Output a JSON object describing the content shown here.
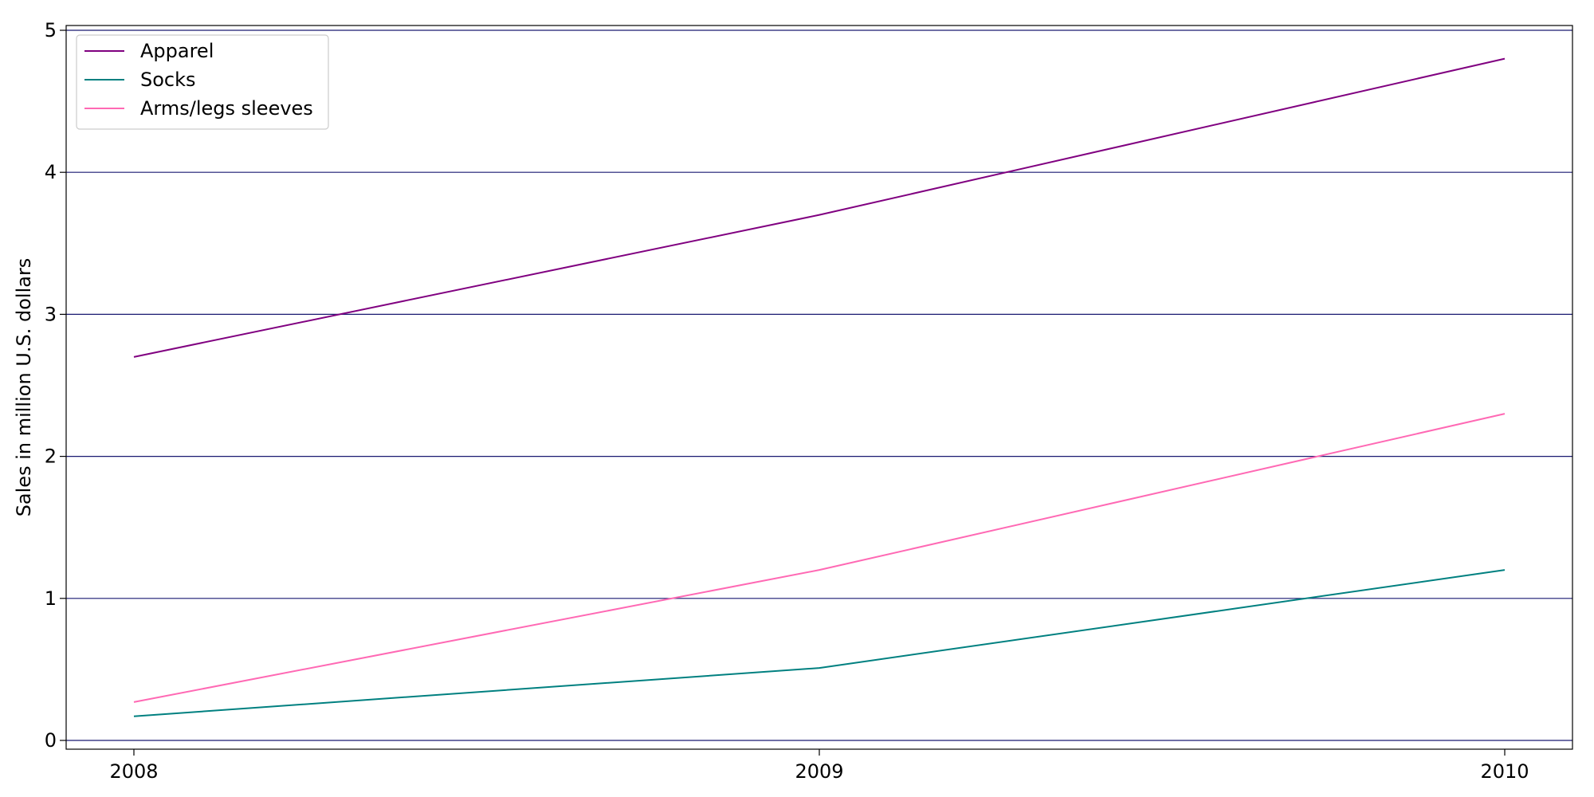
{
  "chart_data": {
    "type": "line",
    "title": "",
    "xlabel": "",
    "ylabel": "Sales in million U.S. dollars",
    "x": [
      "2008",
      "2009",
      "2010"
    ],
    "xticks": [
      "2008",
      "2009",
      "2010"
    ],
    "yticks": [
      "0",
      "1",
      "2",
      "3",
      "4",
      "5"
    ],
    "ylim": [
      0,
      5
    ],
    "grid": "horizontal",
    "grid_color": "#191970",
    "legend_position": "top-left",
    "series": [
      {
        "name": "Apparel",
        "color": "#800080",
        "values": [
          2.7,
          3.7,
          4.8
        ]
      },
      {
        "name": "Socks",
        "color": "#008080",
        "values": [
          0.17,
          0.51,
          1.2
        ]
      },
      {
        "name": "Arms/legs sleeves",
        "color": "#ff69b4",
        "values": [
          0.27,
          1.2,
          2.3
        ]
      }
    ]
  }
}
